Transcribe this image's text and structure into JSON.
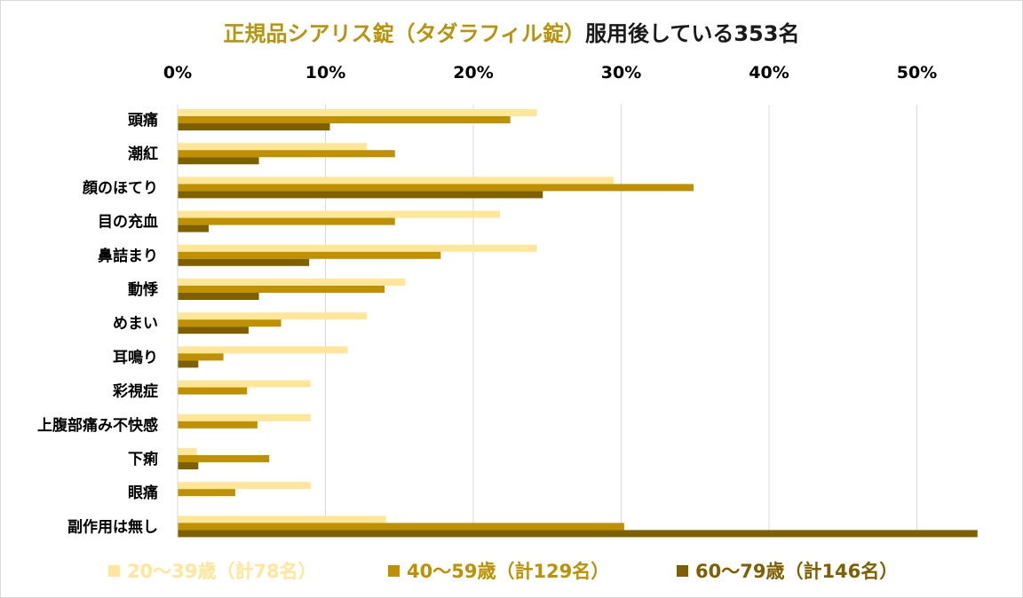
{
  "chart_data": {
    "type": "bar",
    "orientation": "horizontal",
    "title_part1": "正規品シアリス錠（タダラフィル錠）",
    "title_part2": "服用後している353名",
    "xlim": [
      0,
      0.55
    ],
    "x_ticks": [
      {
        "value": 0,
        "label": "0%"
      },
      {
        "value": 0.1,
        "label": "10%"
      },
      {
        "value": 0.2,
        "label": "20%"
      },
      {
        "value": 0.3,
        "label": "30%"
      },
      {
        "value": 0.4,
        "label": "40%"
      },
      {
        "value": 0.5,
        "label": "50%"
      }
    ],
    "categories": [
      "頭痛",
      "潮紅",
      "顔のほてり",
      "目の充血",
      "鼻詰まり",
      "動悸",
      "めまい",
      "耳鳴り",
      "彩視症",
      "上腹部痛み不快感",
      "下痢",
      "眼痛",
      "副作用は無し"
    ],
    "series": [
      {
        "name": "20〜39歳（計78名）",
        "color": "#ffe699",
        "values": [
          0.243,
          0.128,
          0.295,
          0.218,
          0.243,
          0.154,
          0.128,
          0.115,
          0.09,
          0.09,
          0.013,
          0.09,
          0.141
        ]
      },
      {
        "name": "40〜59歳（計129名）",
        "color": "#bf9000",
        "values": [
          0.225,
          0.147,
          0.349,
          0.147,
          0.178,
          0.14,
          0.07,
          0.031,
          0.047,
          0.054,
          0.062,
          0.039,
          0.302
        ]
      },
      {
        "name": "60〜79歳（計146名）",
        "color": "#7f6000",
        "values": [
          0.103,
          0.055,
          0.247,
          0.021,
          0.089,
          0.055,
          0.048,
          0.014,
          0.0,
          0.0,
          0.014,
          0.0,
          0.541
        ]
      }
    ],
    "grid": true,
    "legend_position": "bottom"
  },
  "colors": {
    "title_accent": "#b8940a",
    "title_text": "#1a1a1a",
    "gridline": "#d9d9d9",
    "axis_text": "#000000"
  }
}
